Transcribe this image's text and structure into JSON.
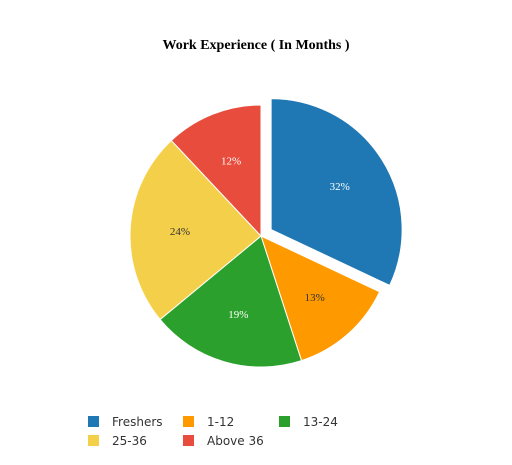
{
  "chart_data": {
    "type": "pie",
    "title": "Work Experience ( In Months )",
    "categories": [
      "Freshers",
      "1-12",
      "13-24",
      "25-36",
      "Above 36"
    ],
    "values": [
      32,
      13,
      19,
      24,
      12
    ],
    "labels": [
      "32%",
      "13%",
      "19%",
      "24%",
      "12%"
    ],
    "colors": [
      "#1f77b4",
      "#ff9900",
      "#2ca02c",
      "#f4d04a",
      "#e84c3d"
    ],
    "label_colors": [
      "#ffffff",
      "#333333",
      "#ffffff",
      "#333333",
      "#ffffff"
    ],
    "exploded": [
      "Freshers"
    ],
    "legend_position": "bottom-left"
  }
}
